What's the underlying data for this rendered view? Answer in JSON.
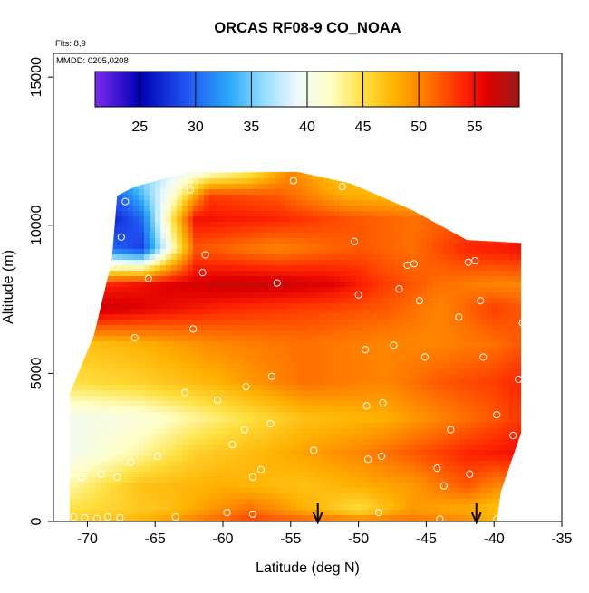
{
  "chart_data": {
    "type": "heatmap",
    "title": "ORCAS RF08-9 CO_NOAA",
    "flights_note": "Flts: 8,9",
    "date_note": "MMDD: 0205,0208",
    "xlabel": "Latitude (deg N)",
    "ylabel": "Altitude (m)",
    "xlim": [
      -72.5,
      -35
    ],
    "ylim": [
      0,
      15800
    ],
    "x_ticks": [
      -70,
      -65,
      -60,
      -55,
      -50,
      -45,
      -40,
      -35
    ],
    "y_ticks": [
      0,
      5000,
      10000,
      15000
    ],
    "colorbar": {
      "range": [
        21,
        59
      ],
      "ticks": [
        25,
        30,
        35,
        40,
        45,
        50,
        55
      ],
      "stops": [
        {
          "v": 21,
          "color": "#7b2cf0"
        },
        {
          "v": 25,
          "color": "#0000b4"
        },
        {
          "v": 29,
          "color": "#1f50f0"
        },
        {
          "v": 33,
          "color": "#2aa8f8"
        },
        {
          "v": 36,
          "color": "#8fdcff"
        },
        {
          "v": 39,
          "color": "#eef8ff"
        },
        {
          "v": 42,
          "color": "#ffffc8"
        },
        {
          "v": 45,
          "color": "#ffe040"
        },
        {
          "v": 48,
          "color": "#ffb000"
        },
        {
          "v": 51,
          "color": "#ff7000"
        },
        {
          "v": 54,
          "color": "#ff2400"
        },
        {
          "v": 56,
          "color": "#e00000"
        },
        {
          "v": 59,
          "color": "#9a1a1a"
        }
      ]
    },
    "coverage": {
      "lat_min": -71.3,
      "lat_max": -38.0,
      "top_profile": [
        {
          "lat": -71.3,
          "alt": 4300
        },
        {
          "lat": -69.5,
          "alt": 6300
        },
        {
          "lat": -68.2,
          "alt": 8800
        },
        {
          "lat": -67.8,
          "alt": 11000
        },
        {
          "lat": -66.5,
          "alt": 11300
        },
        {
          "lat": -62.5,
          "alt": 11800
        },
        {
          "lat": -54.5,
          "alt": 11800
        },
        {
          "lat": -50.5,
          "alt": 11400
        },
        {
          "lat": -46.0,
          "alt": 10500
        },
        {
          "lat": -42.0,
          "alt": 9500
        },
        {
          "lat": -38.0,
          "alt": 9400
        }
      ],
      "bottom_profile": [
        {
          "lat": -38.0,
          "alt": 3000
        },
        {
          "lat": -39.5,
          "alt": 1000
        },
        {
          "lat": -39.8,
          "alt": 0
        }
      ]
    },
    "layers": [
      {
        "alt": 0,
        "values": [
          {
            "lat": -71,
            "v": 46
          },
          {
            "lat": -66,
            "v": 48
          },
          {
            "lat": -58,
            "v": 53
          },
          {
            "lat": -54,
            "v": 52
          },
          {
            "lat": -50,
            "v": 51
          },
          {
            "lat": -46,
            "v": 51
          },
          {
            "lat": -42,
            "v": 50
          },
          {
            "lat": -40,
            "v": 48
          }
        ]
      },
      {
        "alt": 400,
        "values": [
          {
            "lat": -71,
            "v": 45
          },
          {
            "lat": -64,
            "v": 47
          },
          {
            "lat": -58,
            "v": 51
          },
          {
            "lat": -50,
            "v": 45
          },
          {
            "lat": -46,
            "v": 49
          },
          {
            "lat": -42,
            "v": 48
          },
          {
            "lat": -40,
            "v": 47
          }
        ]
      },
      {
        "alt": 1200,
        "values": [
          {
            "lat": -71,
            "v": 43
          },
          {
            "lat": -66,
            "v": 47
          },
          {
            "lat": -60,
            "v": 48
          },
          {
            "lat": -54,
            "v": 47
          },
          {
            "lat": -50,
            "v": 48
          },
          {
            "lat": -46,
            "v": 49
          },
          {
            "lat": -42,
            "v": 52
          },
          {
            "lat": -40,
            "v": 50
          }
        ]
      },
      {
        "alt": 2300,
        "values": [
          {
            "lat": -71,
            "v": 40
          },
          {
            "lat": -66,
            "v": 43
          },
          {
            "lat": -62,
            "v": 46
          },
          {
            "lat": -56,
            "v": 48
          },
          {
            "lat": -50,
            "v": 50
          },
          {
            "lat": -46,
            "v": 52
          },
          {
            "lat": -42,
            "v": 54
          },
          {
            "lat": -38.5,
            "v": 55
          }
        ]
      },
      {
        "alt": 3500,
        "values": [
          {
            "lat": -71,
            "v": 40
          },
          {
            "lat": -66,
            "v": 41
          },
          {
            "lat": -60,
            "v": 44
          },
          {
            "lat": -54,
            "v": 47
          },
          {
            "lat": -48,
            "v": 48
          },
          {
            "lat": -44,
            "v": 50
          },
          {
            "lat": -40,
            "v": 52
          },
          {
            "lat": -38.5,
            "v": 53
          }
        ]
      },
      {
        "alt": 4700,
        "values": [
          {
            "lat": -71,
            "v": 45
          },
          {
            "lat": -66,
            "v": 46
          },
          {
            "lat": -60,
            "v": 48
          },
          {
            "lat": -54,
            "v": 51
          },
          {
            "lat": -48,
            "v": 50
          },
          {
            "lat": -44,
            "v": 52
          },
          {
            "lat": -40,
            "v": 53
          },
          {
            "lat": -38,
            "v": 54
          }
        ]
      },
      {
        "alt": 6000,
        "values": [
          {
            "lat": -70,
            "v": 47
          },
          {
            "lat": -66,
            "v": 48
          },
          {
            "lat": -60,
            "v": 50
          },
          {
            "lat": -54,
            "v": 51
          },
          {
            "lat": -48,
            "v": 50
          },
          {
            "lat": -44,
            "v": 50
          },
          {
            "lat": -40,
            "v": 51
          },
          {
            "lat": -38,
            "v": 52
          }
        ]
      },
      {
        "alt": 7200,
        "values": [
          {
            "lat": -69,
            "v": 57
          },
          {
            "lat": -66,
            "v": 56
          },
          {
            "lat": -60,
            "v": 54
          },
          {
            "lat": -54,
            "v": 53
          },
          {
            "lat": -48,
            "v": 52
          },
          {
            "lat": -44,
            "v": 50
          },
          {
            "lat": -40,
            "v": 53
          },
          {
            "lat": -38,
            "v": 52
          }
        ]
      },
      {
        "alt": 8000,
        "values": [
          {
            "lat": -68.5,
            "v": 54
          },
          {
            "lat": -64,
            "v": 56
          },
          {
            "lat": -60,
            "v": 57
          },
          {
            "lat": -56,
            "v": 57
          },
          {
            "lat": -52,
            "v": 56
          },
          {
            "lat": -48,
            "v": 53
          },
          {
            "lat": -44,
            "v": 51
          },
          {
            "lat": -40,
            "v": 50
          }
        ]
      },
      {
        "alt": 9200,
        "values": [
          {
            "lat": -68,
            "v": 30
          },
          {
            "lat": -66,
            "v": 28
          },
          {
            "lat": -64,
            "v": 40
          },
          {
            "lat": -62,
            "v": 52
          },
          {
            "lat": -56,
            "v": 50
          },
          {
            "lat": -50,
            "v": 52
          },
          {
            "lat": -46,
            "v": 51
          },
          {
            "lat": -42,
            "v": 54
          },
          {
            "lat": -38,
            "v": 55
          }
        ]
      },
      {
        "alt": 10200,
        "values": [
          {
            "lat": -68,
            "v": 27
          },
          {
            "lat": -66,
            "v": 30
          },
          {
            "lat": -64,
            "v": 43
          },
          {
            "lat": -62,
            "v": 55
          },
          {
            "lat": -56,
            "v": 54
          },
          {
            "lat": -50,
            "v": 52
          },
          {
            "lat": -46,
            "v": 51
          },
          {
            "lat": -42,
            "v": 52
          }
        ]
      },
      {
        "alt": 11000,
        "values": [
          {
            "lat": -67.5,
            "v": 30
          },
          {
            "lat": -66,
            "v": 34
          },
          {
            "lat": -63.5,
            "v": 42
          },
          {
            "lat": -61,
            "v": 53
          },
          {
            "lat": -56,
            "v": 52
          },
          {
            "lat": -51,
            "v": 48
          },
          {
            "lat": -46,
            "v": 47
          }
        ]
      },
      {
        "alt": 11800,
        "values": [
          {
            "lat": -66,
            "v": 36
          },
          {
            "lat": -62,
            "v": 40
          },
          {
            "lat": -58,
            "v": 44
          },
          {
            "lat": -55,
            "v": 50
          },
          {
            "lat": -52,
            "v": 47
          }
        ]
      }
    ],
    "sample_points": [
      {
        "lat": -71.0,
        "alt": 150
      },
      {
        "lat": -70.2,
        "alt": 120
      },
      {
        "lat": -69.3,
        "alt": 100
      },
      {
        "lat": -68.5,
        "alt": 150
      },
      {
        "lat": -67.6,
        "alt": 130
      },
      {
        "lat": -63.5,
        "alt": 150
      },
      {
        "lat": -59.7,
        "alt": 300
      },
      {
        "lat": -57.8,
        "alt": 250
      },
      {
        "lat": -48.5,
        "alt": 300
      },
      {
        "lat": -44.0,
        "alt": 80
      },
      {
        "lat": -39.8,
        "alt": 80
      },
      {
        "lat": -70.4,
        "alt": 1500
      },
      {
        "lat": -69.0,
        "alt": 1600
      },
      {
        "lat": -67.8,
        "alt": 1500
      },
      {
        "lat": -66.8,
        "alt": 2000
      },
      {
        "lat": -57.8,
        "alt": 1500
      },
      {
        "lat": -57.2,
        "alt": 1750
      },
      {
        "lat": -53.3,
        "alt": 2400
      },
      {
        "lat": -49.3,
        "alt": 2100
      },
      {
        "lat": -48.3,
        "alt": 2200
      },
      {
        "lat": -44.2,
        "alt": 1800
      },
      {
        "lat": -43.7,
        "alt": 1200
      },
      {
        "lat": -41.8,
        "alt": 1600
      },
      {
        "lat": -64.8,
        "alt": 2200
      },
      {
        "lat": -59.3,
        "alt": 2600
      },
      {
        "lat": -58.4,
        "alt": 3100
      },
      {
        "lat": -56.5,
        "alt": 3300
      },
      {
        "lat": -43.2,
        "alt": 3100
      },
      {
        "lat": -39.8,
        "alt": 3600
      },
      {
        "lat": -38.6,
        "alt": 2900
      },
      {
        "lat": -62.8,
        "alt": 4350
      },
      {
        "lat": -60.4,
        "alt": 4100
      },
      {
        "lat": -58.3,
        "alt": 4550
      },
      {
        "lat": -56.4,
        "alt": 4900
      },
      {
        "lat": -48.2,
        "alt": 4000
      },
      {
        "lat": -49.4,
        "alt": 3900
      },
      {
        "lat": -38.2,
        "alt": 4800
      },
      {
        "lat": -62.2,
        "alt": 6500
      },
      {
        "lat": -66.5,
        "alt": 6200
      },
      {
        "lat": -49.5,
        "alt": 5800
      },
      {
        "lat": -47.4,
        "alt": 5950
      },
      {
        "lat": -45.1,
        "alt": 5550
      },
      {
        "lat": -40.8,
        "alt": 5550
      },
      {
        "lat": -42.6,
        "alt": 6900
      },
      {
        "lat": -37.9,
        "alt": 6700
      },
      {
        "lat": -67.9,
        "alt": 8600
      },
      {
        "lat": -65.5,
        "alt": 8200
      },
      {
        "lat": -61.5,
        "alt": 8400
      },
      {
        "lat": -56.0,
        "alt": 8050
      },
      {
        "lat": -50.0,
        "alt": 7650
      },
      {
        "lat": -47.0,
        "alt": 7850
      },
      {
        "lat": -45.5,
        "alt": 7450
      },
      {
        "lat": -41.0,
        "alt": 7450
      },
      {
        "lat": -61.3,
        "alt": 9000
      },
      {
        "lat": -46.4,
        "alt": 8650
      },
      {
        "lat": -45.9,
        "alt": 8700
      },
      {
        "lat": -41.9,
        "alt": 8750
      },
      {
        "lat": -41.4,
        "alt": 8800
      },
      {
        "lat": -50.3,
        "alt": 9450
      },
      {
        "lat": -67.5,
        "alt": 9600
      },
      {
        "lat": -67.2,
        "alt": 10800
      },
      {
        "lat": -62.4,
        "alt": 11200
      },
      {
        "lat": -54.8,
        "alt": 11500
      },
      {
        "lat": -51.2,
        "alt": 11300
      },
      {
        "lat": -62.6,
        "alt": 11700
      }
    ],
    "arrows": [
      {
        "lat": -53.0,
        "label": ""
      },
      {
        "lat": -41.3,
        "label": ""
      }
    ]
  }
}
